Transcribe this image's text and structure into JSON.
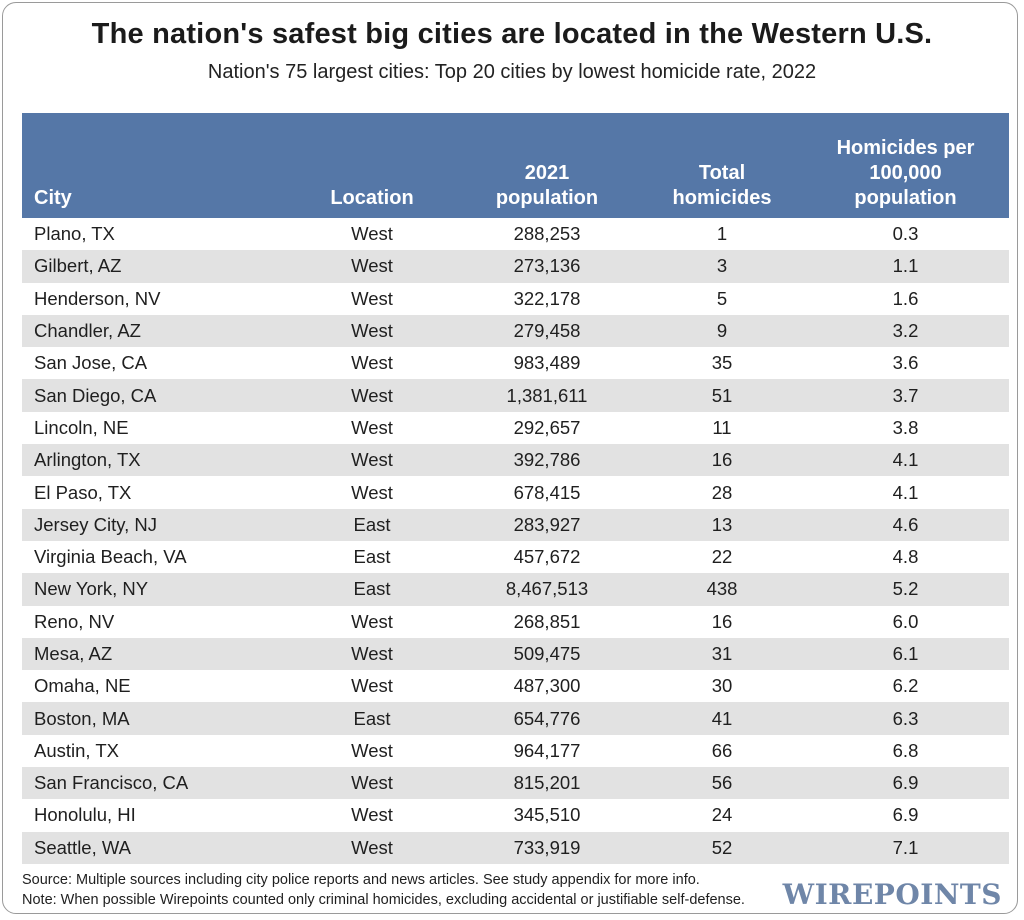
{
  "title": "The nation's safest big cities are located in the Western U.S.",
  "subtitle": "Nation's 75 largest cities: Top 20 cities by lowest homicide rate, 2022",
  "colors": {
    "header_bg": "#5577a7",
    "stripe": "#e2e2e2",
    "logo": "#6f86a8"
  },
  "chart_data": {
    "type": "table",
    "columns": [
      "City",
      "Location",
      "2021 population",
      "Total homicides",
      "Homicides per 100,000 population"
    ],
    "rows": [
      [
        "Plano, TX",
        "West",
        "288,253",
        "1",
        "0.3"
      ],
      [
        "Gilbert, AZ",
        "West",
        "273,136",
        "3",
        "1.1"
      ],
      [
        "Henderson, NV",
        "West",
        "322,178",
        "5",
        "1.6"
      ],
      [
        "Chandler, AZ",
        "West",
        "279,458",
        "9",
        "3.2"
      ],
      [
        "San Jose, CA",
        "West",
        "983,489",
        "35",
        "3.6"
      ],
      [
        "San Diego, CA",
        "West",
        "1,381,611",
        "51",
        "3.7"
      ],
      [
        "Lincoln, NE",
        "West",
        "292,657",
        "11",
        "3.8"
      ],
      [
        "Arlington, TX",
        "West",
        "392,786",
        "16",
        "4.1"
      ],
      [
        "El Paso, TX",
        "West",
        "678,415",
        "28",
        "4.1"
      ],
      [
        "Jersey City, NJ",
        "East",
        "283,927",
        "13",
        "4.6"
      ],
      [
        "Virginia Beach, VA",
        "East",
        "457,672",
        "22",
        "4.8"
      ],
      [
        "New York, NY",
        "East",
        "8,467,513",
        "438",
        "5.2"
      ],
      [
        "Reno, NV",
        "West",
        "268,851",
        "16",
        "6.0"
      ],
      [
        "Mesa, AZ",
        "West",
        "509,475",
        "31",
        "6.1"
      ],
      [
        "Omaha, NE",
        "West",
        "487,300",
        "30",
        "6.2"
      ],
      [
        "Boston, MA",
        "East",
        "654,776",
        "41",
        "6.3"
      ],
      [
        "Austin, TX",
        "West",
        "964,177",
        "66",
        "6.8"
      ],
      [
        "San Francisco, CA",
        "West",
        "815,201",
        "56",
        "6.9"
      ],
      [
        "Honolulu, HI",
        "West",
        "345,510",
        "24",
        "6.9"
      ],
      [
        "Seattle, WA",
        "West",
        "733,919",
        "52",
        "7.1"
      ]
    ]
  },
  "footer": {
    "source": "Source: Multiple sources including city police reports and news articles. See study appendix for more info.",
    "note": "Note: When possible Wirepoints counted only criminal homicides, excluding accidental or justifiable self-defense."
  },
  "logo_text": "WIREPOINTS"
}
